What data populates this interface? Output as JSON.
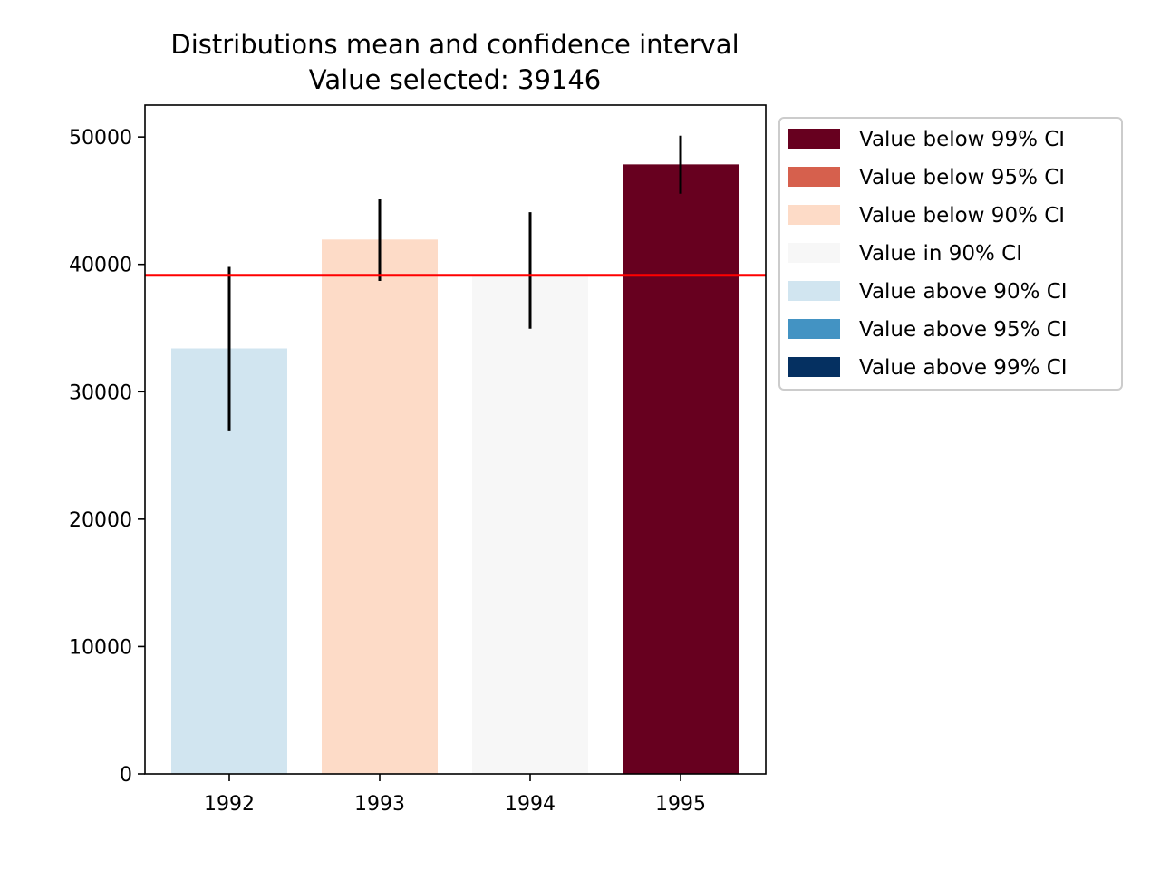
{
  "chart_data": {
    "type": "bar",
    "title": "Distributions mean and confidence interval",
    "subtitle": "Value selected: 39146",
    "xlabel": "",
    "ylabel": "",
    "ylim": [
      0,
      52500
    ],
    "yticks": [
      0,
      10000,
      20000,
      30000,
      40000,
      50000
    ],
    "categories": [
      "1992",
      "1993",
      "1994",
      "1995"
    ],
    "values": [
      33400,
      41950,
      39150,
      47850
    ],
    "error_low": [
      26900,
      38700,
      34950,
      45550
    ],
    "error_high": [
      39800,
      45100,
      44100,
      50100
    ],
    "bar_colors": [
      "#d1e5f0",
      "#fddbc7",
      "#f7f7f7",
      "#67001f"
    ],
    "error_color": "#000000",
    "reference_line": {
      "value": 39146,
      "color": "#ff0000"
    },
    "grid": false,
    "legend_placement": "outside-upper-right",
    "legend": [
      {
        "label": "Value below 99% CI",
        "color": "#67001f"
      },
      {
        "label": "Value below 95% CI",
        "color": "#d6604d"
      },
      {
        "label": "Value below 90% CI",
        "color": "#fddbc7"
      },
      {
        "label": "Value in 90% CI",
        "color": "#f7f7f7"
      },
      {
        "label": "Value above 90% CI",
        "color": "#d1e5f0"
      },
      {
        "label": "Value above 95% CI",
        "color": "#4393c3"
      },
      {
        "label": "Value above 99% CI",
        "color": "#053061"
      }
    ]
  }
}
